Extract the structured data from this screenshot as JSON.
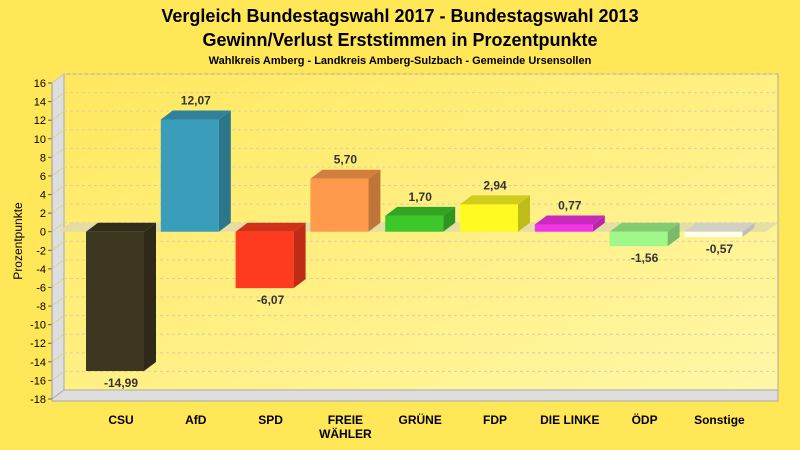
{
  "chart_data": {
    "type": "bar",
    "title": "Vergleich Bundestagswahl 2017 - Bundestagswahl 2013",
    "subtitle": "Gewinn/Verlust Erststimmen in Prozentpunkte",
    "subtitle2": "Wahlkreis Amberg - Landkreis Amberg-Sulzbach - Gemeinde Ursensollen",
    "xlabel": "",
    "ylabel": "Prozentpunkte",
    "ylim": [
      -18,
      16
    ],
    "yticks": [
      16,
      14,
      12,
      10,
      8,
      6,
      4,
      2,
      0,
      -2,
      -4,
      -6,
      -8,
      -10,
      -12,
      -14,
      -16,
      -18
    ],
    "grid": true,
    "legend": "none",
    "categories": [
      "CSU",
      "AfD",
      "SPD",
      "FREIE WÄHLER",
      "GRÜNE",
      "FDP",
      "DIE LINKE",
      "ÖDP",
      "Sonstige"
    ],
    "category_lines": [
      [
        "CSU"
      ],
      [
        "AfD"
      ],
      [
        "SPD"
      ],
      [
        "FREIE",
        "WÄHLER"
      ],
      [
        "GRÜNE"
      ],
      [
        "FDP"
      ],
      [
        "DIE LINKE"
      ],
      [
        "ÖDP"
      ],
      [
        "Sonstige"
      ]
    ],
    "values": [
      -14.99,
      12.07,
      -6.07,
      5.7,
      1.7,
      2.94,
      0.77,
      -1.56,
      -0.57
    ],
    "value_labels": [
      "-14,99",
      "12,07",
      "-6,07",
      "5,70",
      "1,70",
      "2,94",
      "0,77",
      "-1,56",
      "-0,57"
    ],
    "colors": [
      "#3D3620",
      "#3A9DBA",
      "#FF3B1F",
      "#FF9A4D",
      "#3CC82A",
      "#FFFA22",
      "#F533E8",
      "#A0F88A",
      "#FFFFEE"
    ]
  },
  "colors": {
    "background": "#FFE757",
    "plot_background": "#FFF08A",
    "wall": "#DDDDDD"
  }
}
